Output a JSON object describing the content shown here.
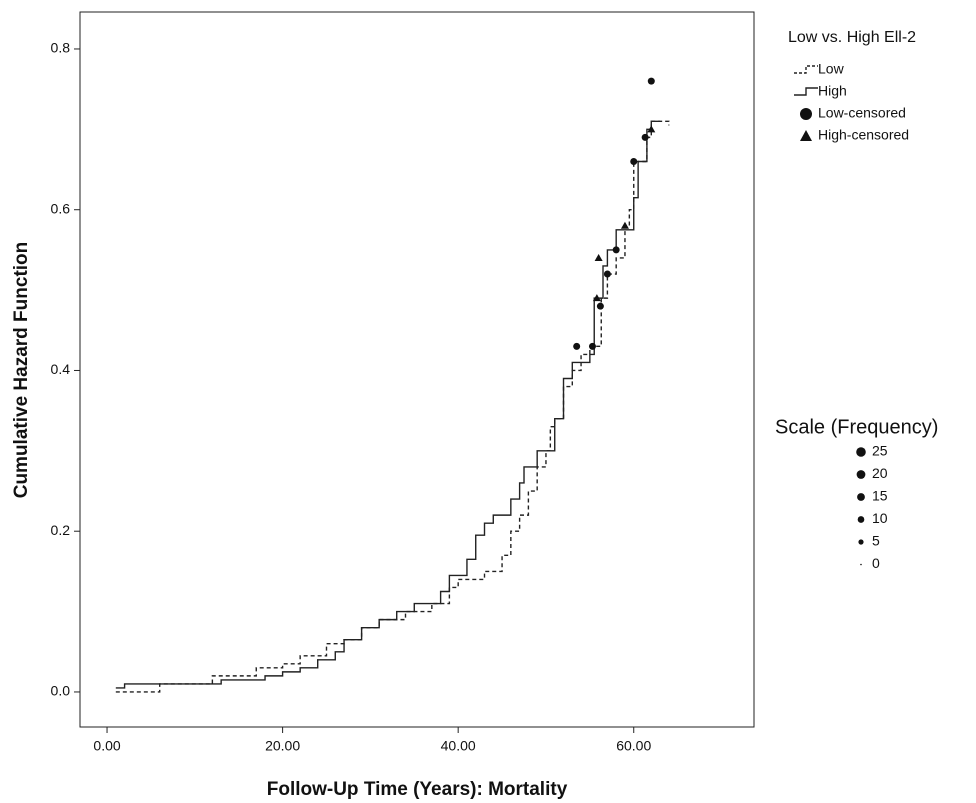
{
  "chart_data": {
    "type": "step",
    "x_label": "Follow-Up Time (Years): Mortality",
    "y_label": "Cumulative Hazard Function",
    "legend_title": "Low vs. High Ell-2",
    "xlim": [
      -3.08,
      73.7
    ],
    "ylim": [
      -0.0436,
      0.846
    ],
    "xticks": [
      {
        "value": 0,
        "label": "0.00"
      },
      {
        "value": 20,
        "label": "20.00"
      },
      {
        "value": 40,
        "label": "40.00"
      },
      {
        "value": 60,
        "label": "60.00"
      }
    ],
    "yticks": [
      {
        "value": 0,
        "label": "0.0"
      },
      0.2,
      0.4,
      0.6,
      0.8
    ],
    "series": [
      {
        "name": "Low",
        "color": "#222222",
        "dashed": true,
        "x": [
          1,
          6,
          12,
          17,
          20,
          22,
          25,
          27,
          29,
          31,
          34,
          37,
          39,
          40,
          43,
          45,
          46,
          47,
          48,
          49,
          50,
          50.5,
          51,
          52,
          53,
          54,
          55,
          56.3,
          57,
          58,
          59,
          59.5,
          60,
          61.5,
          62,
          64
        ],
        "y": [
          0,
          0.01,
          0.02,
          0.03,
          0.035,
          0.045,
          0.06,
          0.065,
          0.08,
          0.09,
          0.1,
          0.11,
          0.13,
          0.14,
          0.15,
          0.17,
          0.2,
          0.22,
          0.25,
          0.28,
          0.3,
          0.33,
          0.34,
          0.38,
          0.4,
          0.42,
          0.43,
          0.49,
          0.52,
          0.54,
          0.58,
          0.6,
          0.66,
          0.69,
          0.71,
          0.705
        ]
      },
      {
        "name": "High",
        "color": "#222222",
        "dashed": false,
        "x": [
          1,
          2,
          13,
          18,
          20,
          22,
          24,
          26,
          27,
          29,
          31,
          33,
          35,
          38,
          39,
          41,
          42,
          43,
          44,
          46,
          47,
          47.5,
          49,
          51,
          52,
          53,
          55,
          55.5,
          56.5,
          57,
          58,
          60,
          60.5,
          61.5,
          62,
          63
        ],
        "y": [
          0.005,
          0.01,
          0.015,
          0.02,
          0.025,
          0.03,
          0.04,
          0.05,
          0.065,
          0.08,
          0.09,
          0.1,
          0.11,
          0.125,
          0.145,
          0.165,
          0.195,
          0.21,
          0.22,
          0.24,
          0.26,
          0.28,
          0.3,
          0.34,
          0.39,
          0.41,
          0.42,
          0.49,
          0.53,
          0.55,
          0.575,
          0.615,
          0.66,
          0.7,
          0.71,
          0.71
        ]
      }
    ],
    "censored": [
      {
        "name": "Low-censored",
        "marker": "circle",
        "color": "#111111",
        "x": [
          53.5,
          55.3,
          56.2,
          57,
          58,
          60,
          61.3,
          62
        ],
        "y": [
          0.43,
          0.43,
          0.48,
          0.52,
          0.55,
          0.66,
          0.69,
          0.76
        ]
      },
      {
        "name": "High-censored",
        "marker": "triangle",
        "color": "#111111",
        "x": [
          55.8,
          56,
          59,
          62
        ],
        "y": [
          0.49,
          0.54,
          0.58,
          0.7
        ]
      }
    ],
    "scale_legend": {
      "title": "Scale (Frequency)",
      "values": [
        25,
        20,
        15,
        10,
        5,
        0
      ]
    }
  }
}
